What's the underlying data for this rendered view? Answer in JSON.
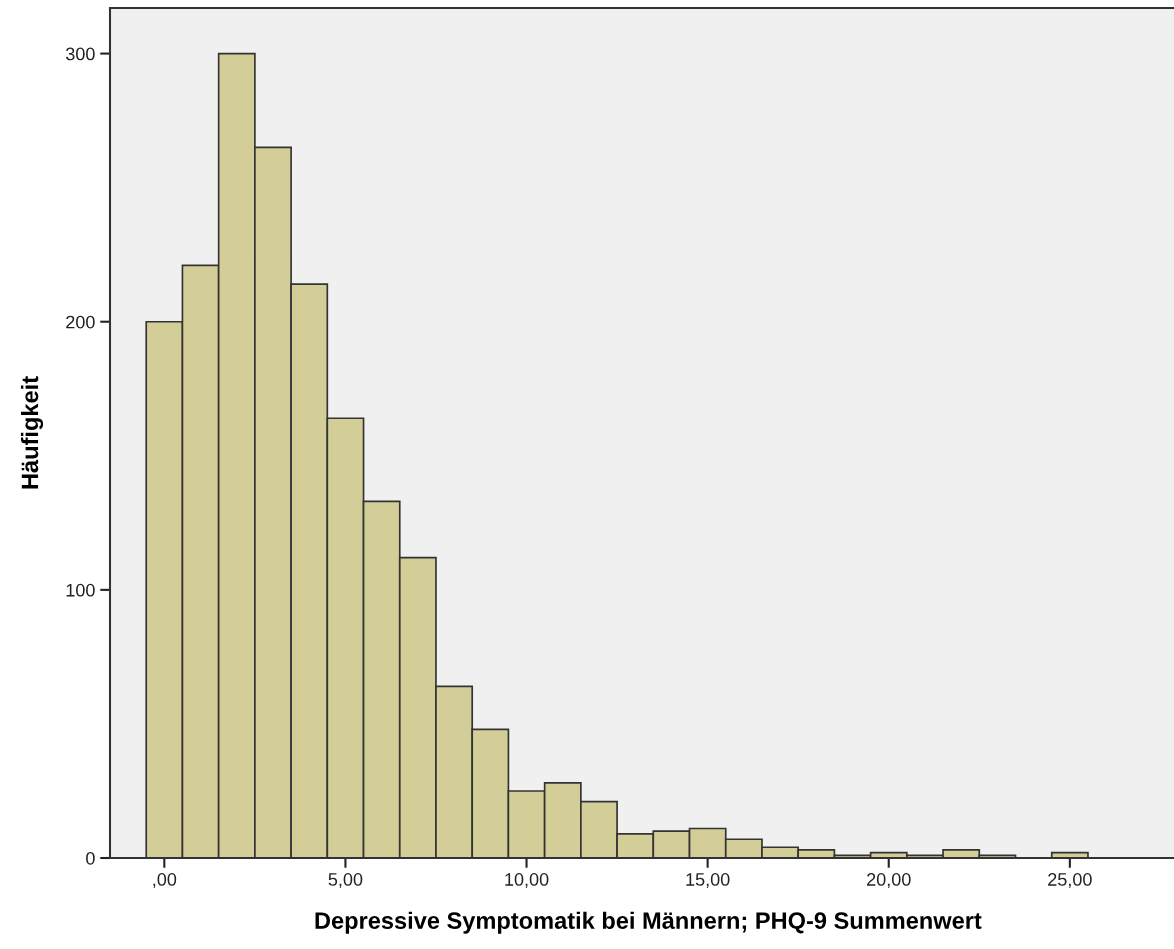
{
  "chart_data": {
    "type": "histogram",
    "xlabel": "Depressive Symptomatik bei Männern; PHQ-9 Summenwert",
    "ylabel": "Häufigkeit",
    "bins": [
      -0.5,
      0.5,
      1.5,
      2.5,
      3.5,
      4.5,
      5.5,
      6.5,
      7.5,
      8.5,
      9.5,
      10.5,
      11.5,
      12.5,
      13.5,
      14.5,
      15.5,
      16.5,
      17.5,
      18.5,
      19.5,
      20.5,
      21.5,
      22.5,
      23.5,
      24.5,
      25.5
    ],
    "values": [
      200,
      221,
      300,
      265,
      214,
      164,
      133,
      112,
      64,
      48,
      25,
      28,
      21,
      9,
      10,
      11,
      7,
      4,
      3,
      1,
      2,
      1,
      3,
      1,
      0,
      2
    ],
    "color": "#d3ce97",
    "xlim": [
      -1.5,
      28.2
    ],
    "ylim": [
      0,
      317
    ],
    "xticks": [
      {
        "value": 0,
        "label": ",00"
      },
      {
        "value": 5,
        "label": "5,00"
      },
      {
        "value": 10,
        "label": "10,00"
      },
      {
        "value": 15,
        "label": "15,00"
      },
      {
        "value": 20,
        "label": "20,00"
      },
      {
        "value": 25,
        "label": "25,00"
      }
    ],
    "yticks": [
      0,
      100,
      200,
      300
    ],
    "grid": false
  }
}
